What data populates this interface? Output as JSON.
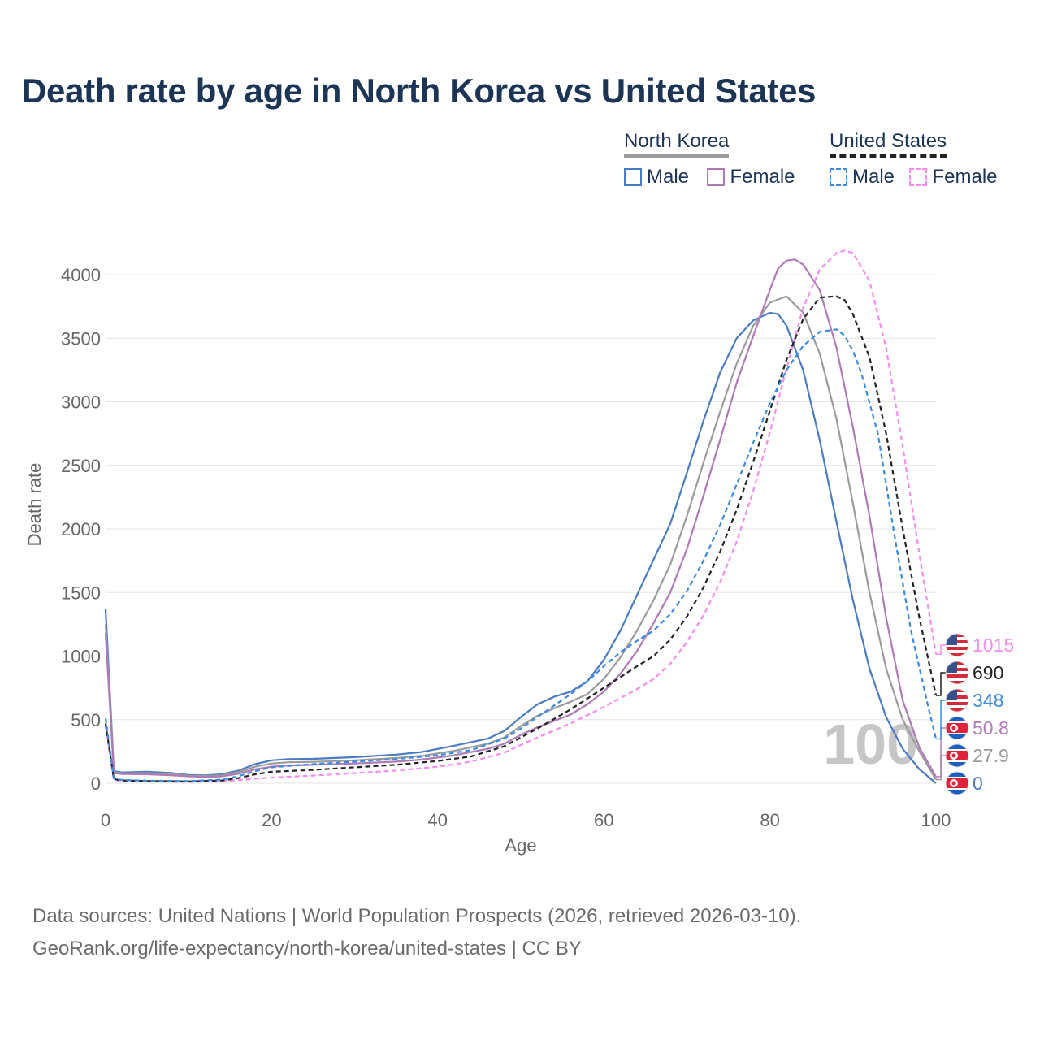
{
  "title": "Death rate by age in North Korea vs United States",
  "legend": {
    "groups": [
      {
        "title": "North Korea",
        "items": [
          {
            "label": "Male",
            "color": "#4a7cc4",
            "dashed": false
          },
          {
            "label": "Female",
            "color": "#b07ab8",
            "dashed": false
          }
        ]
      },
      {
        "title": "United States",
        "items": [
          {
            "label": "Male",
            "color": "#3b8be0",
            "dashed": true
          },
          {
            "label": "Female",
            "color": "#f58cf0",
            "dashed": true
          }
        ]
      }
    ]
  },
  "chart_data": {
    "type": "line",
    "title": "Death rate by age in North Korea vs United States",
    "xlabel": "Age",
    "ylabel": "Death rate",
    "xlim": [
      0,
      100
    ],
    "ylim": [
      0,
      4200
    ],
    "xticks": [
      0,
      20,
      40,
      60,
      80,
      100
    ],
    "yticks": [
      0,
      500,
      1000,
      1500,
      2000,
      2500,
      3000,
      3500,
      4000
    ],
    "grid": true,
    "watermark": "100",
    "series": [
      {
        "name": "North Korea Male",
        "color": "#4a7cc4",
        "dashed": false,
        "end_label": "0",
        "flag": "north-korea",
        "points": [
          [
            0,
            1370
          ],
          [
            1,
            95
          ],
          [
            2,
            85
          ],
          [
            5,
            90
          ],
          [
            8,
            80
          ],
          [
            10,
            65
          ],
          [
            12,
            62
          ],
          [
            14,
            70
          ],
          [
            16,
            100
          ],
          [
            18,
            150
          ],
          [
            20,
            180
          ],
          [
            22,
            190
          ],
          [
            25,
            192
          ],
          [
            30,
            205
          ],
          [
            35,
            225
          ],
          [
            38,
            245
          ],
          [
            42,
            295
          ],
          [
            46,
            350
          ],
          [
            48,
            410
          ],
          [
            50,
            520
          ],
          [
            52,
            620
          ],
          [
            54,
            680
          ],
          [
            56,
            720
          ],
          [
            58,
            800
          ],
          [
            60,
            970
          ],
          [
            62,
            1200
          ],
          [
            64,
            1480
          ],
          [
            66,
            1760
          ],
          [
            68,
            2040
          ],
          [
            70,
            2440
          ],
          [
            72,
            2850
          ],
          [
            74,
            3230
          ],
          [
            76,
            3500
          ],
          [
            78,
            3640
          ],
          [
            80,
            3700
          ],
          [
            81,
            3690
          ],
          [
            82,
            3600
          ],
          [
            84,
            3250
          ],
          [
            86,
            2700
          ],
          [
            88,
            2060
          ],
          [
            90,
            1440
          ],
          [
            92,
            900
          ],
          [
            94,
            520
          ],
          [
            96,
            270
          ],
          [
            98,
            110
          ],
          [
            100,
            0
          ]
        ]
      },
      {
        "name": "North Korea Total",
        "color": "#9b9b9b",
        "dashed": false,
        "end_label": "27.9",
        "flag": "north-korea",
        "points": [
          [
            0,
            1250
          ],
          [
            1,
            88
          ],
          [
            2,
            78
          ],
          [
            5,
            80
          ],
          [
            8,
            72
          ],
          [
            10,
            60
          ],
          [
            12,
            56
          ],
          [
            14,
            62
          ],
          [
            16,
            88
          ],
          [
            18,
            130
          ],
          [
            20,
            155
          ],
          [
            22,
            165
          ],
          [
            25,
            168
          ],
          [
            30,
            180
          ],
          [
            35,
            198
          ],
          [
            38,
            215
          ],
          [
            42,
            255
          ],
          [
            46,
            310
          ],
          [
            48,
            360
          ],
          [
            50,
            450
          ],
          [
            52,
            530
          ],
          [
            54,
            590
          ],
          [
            56,
            640
          ],
          [
            58,
            700
          ],
          [
            60,
            820
          ],
          [
            62,
            990
          ],
          [
            64,
            1200
          ],
          [
            66,
            1440
          ],
          [
            68,
            1720
          ],
          [
            70,
            2100
          ],
          [
            72,
            2520
          ],
          [
            74,
            2920
          ],
          [
            76,
            3300
          ],
          [
            78,
            3600
          ],
          [
            80,
            3780
          ],
          [
            82,
            3830
          ],
          [
            84,
            3700
          ],
          [
            86,
            3380
          ],
          [
            88,
            2870
          ],
          [
            90,
            2200
          ],
          [
            92,
            1500
          ],
          [
            94,
            900
          ],
          [
            96,
            500
          ],
          [
            98,
            250
          ],
          [
            100,
            28
          ]
        ]
      },
      {
        "name": "North Korea Female",
        "color": "#b07ab8",
        "dashed": false,
        "end_label": "50.8",
        "flag": "north-korea",
        "points": [
          [
            0,
            1180
          ],
          [
            1,
            80
          ],
          [
            2,
            72
          ],
          [
            5,
            70
          ],
          [
            8,
            62
          ],
          [
            10,
            54
          ],
          [
            12,
            50
          ],
          [
            14,
            54
          ],
          [
            16,
            75
          ],
          [
            18,
            110
          ],
          [
            20,
            130
          ],
          [
            22,
            140
          ],
          [
            25,
            145
          ],
          [
            30,
            155
          ],
          [
            35,
            170
          ],
          [
            38,
            185
          ],
          [
            42,
            220
          ],
          [
            46,
            270
          ],
          [
            48,
            310
          ],
          [
            50,
            380
          ],
          [
            52,
            440
          ],
          [
            54,
            490
          ],
          [
            56,
            540
          ],
          [
            58,
            620
          ],
          [
            60,
            720
          ],
          [
            62,
            860
          ],
          [
            64,
            1040
          ],
          [
            66,
            1260
          ],
          [
            68,
            1500
          ],
          [
            70,
            1840
          ],
          [
            72,
            2260
          ],
          [
            74,
            2700
          ],
          [
            76,
            3150
          ],
          [
            78,
            3520
          ],
          [
            80,
            3880
          ],
          [
            81,
            4050
          ],
          [
            82,
            4110
          ],
          [
            83,
            4120
          ],
          [
            84,
            4080
          ],
          [
            86,
            3880
          ],
          [
            88,
            3430
          ],
          [
            90,
            2800
          ],
          [
            92,
            2100
          ],
          [
            94,
            1300
          ],
          [
            96,
            650
          ],
          [
            98,
            280
          ],
          [
            100,
            51
          ]
        ]
      },
      {
        "name": "United States Female",
        "color": "#f58cf0",
        "dashed": true,
        "end_label": "1015",
        "flag": "united-states",
        "points": [
          [
            0,
            450
          ],
          [
            1,
            25
          ],
          [
            2,
            18
          ],
          [
            5,
            14
          ],
          [
            10,
            10
          ],
          [
            14,
            16
          ],
          [
            16,
            24
          ],
          [
            18,
            36
          ],
          [
            20,
            45
          ],
          [
            25,
            60
          ],
          [
            30,
            80
          ],
          [
            35,
            100
          ],
          [
            40,
            130
          ],
          [
            44,
            170
          ],
          [
            48,
            240
          ],
          [
            50,
            300
          ],
          [
            52,
            360
          ],
          [
            56,
            470
          ],
          [
            60,
            600
          ],
          [
            64,
            740
          ],
          [
            66,
            820
          ],
          [
            68,
            940
          ],
          [
            70,
            1110
          ],
          [
            72,
            1320
          ],
          [
            74,
            1580
          ],
          [
            76,
            1900
          ],
          [
            78,
            2300
          ],
          [
            80,
            2760
          ],
          [
            82,
            3260
          ],
          [
            84,
            3740
          ],
          [
            86,
            4040
          ],
          [
            88,
            4170
          ],
          [
            89,
            4190
          ],
          [
            90,
            4170
          ],
          [
            92,
            3950
          ],
          [
            94,
            3420
          ],
          [
            96,
            2650
          ],
          [
            98,
            1800
          ],
          [
            100,
            1015
          ]
        ]
      },
      {
        "name": "United States Total",
        "color": "#222222",
        "dashed": true,
        "end_label": "690",
        "flag": "united-states",
        "points": [
          [
            0,
            470
          ],
          [
            1,
            32
          ],
          [
            2,
            22
          ],
          [
            5,
            17
          ],
          [
            10,
            14
          ],
          [
            14,
            22
          ],
          [
            16,
            40
          ],
          [
            18,
            70
          ],
          [
            20,
            90
          ],
          [
            25,
            105
          ],
          [
            30,
            125
          ],
          [
            35,
            145
          ],
          [
            40,
            175
          ],
          [
            44,
            210
          ],
          [
            48,
            290
          ],
          [
            50,
            360
          ],
          [
            52,
            430
          ],
          [
            56,
            580
          ],
          [
            60,
            750
          ],
          [
            64,
            920
          ],
          [
            66,
            1000
          ],
          [
            68,
            1130
          ],
          [
            70,
            1310
          ],
          [
            72,
            1540
          ],
          [
            74,
            1820
          ],
          [
            76,
            2150
          ],
          [
            78,
            2530
          ],
          [
            80,
            2930
          ],
          [
            82,
            3330
          ],
          [
            84,
            3650
          ],
          [
            86,
            3820
          ],
          [
            88,
            3830
          ],
          [
            89,
            3800
          ],
          [
            90,
            3690
          ],
          [
            92,
            3350
          ],
          [
            94,
            2750
          ],
          [
            96,
            2000
          ],
          [
            98,
            1300
          ],
          [
            100,
            690
          ]
        ]
      },
      {
        "name": "United States Male",
        "color": "#3b8be0",
        "dashed": true,
        "end_label": "348",
        "flag": "united-states",
        "points": [
          [
            0,
            510
          ],
          [
            1,
            38
          ],
          [
            2,
            26
          ],
          [
            5,
            20
          ],
          [
            10,
            17
          ],
          [
            14,
            28
          ],
          [
            16,
            55
          ],
          [
            18,
            95
          ],
          [
            20,
            125
          ],
          [
            25,
            150
          ],
          [
            30,
            170
          ],
          [
            35,
            190
          ],
          [
            40,
            220
          ],
          [
            44,
            260
          ],
          [
            48,
            350
          ],
          [
            50,
            430
          ],
          [
            52,
            520
          ],
          [
            56,
            700
          ],
          [
            58,
            800
          ],
          [
            60,
            920
          ],
          [
            62,
            1030
          ],
          [
            64,
            1120
          ],
          [
            66,
            1200
          ],
          [
            68,
            1330
          ],
          [
            70,
            1510
          ],
          [
            72,
            1750
          ],
          [
            74,
            2030
          ],
          [
            76,
            2350
          ],
          [
            78,
            2680
          ],
          [
            80,
            2990
          ],
          [
            82,
            3250
          ],
          [
            84,
            3440
          ],
          [
            86,
            3550
          ],
          [
            88,
            3570
          ],
          [
            89,
            3520
          ],
          [
            90,
            3400
          ],
          [
            91,
            3230
          ],
          [
            93,
            2750
          ],
          [
            95,
            1950
          ],
          [
            97,
            1200
          ],
          [
            99,
            620
          ],
          [
            100,
            348
          ]
        ]
      }
    ]
  },
  "footer": {
    "line1": "Data sources: United Nations | World Population Prospects (2026, retrieved 2026-03-10).",
    "line2": "GeoRank.org/life-expectancy/north-korea/united-states | CC BY"
  }
}
